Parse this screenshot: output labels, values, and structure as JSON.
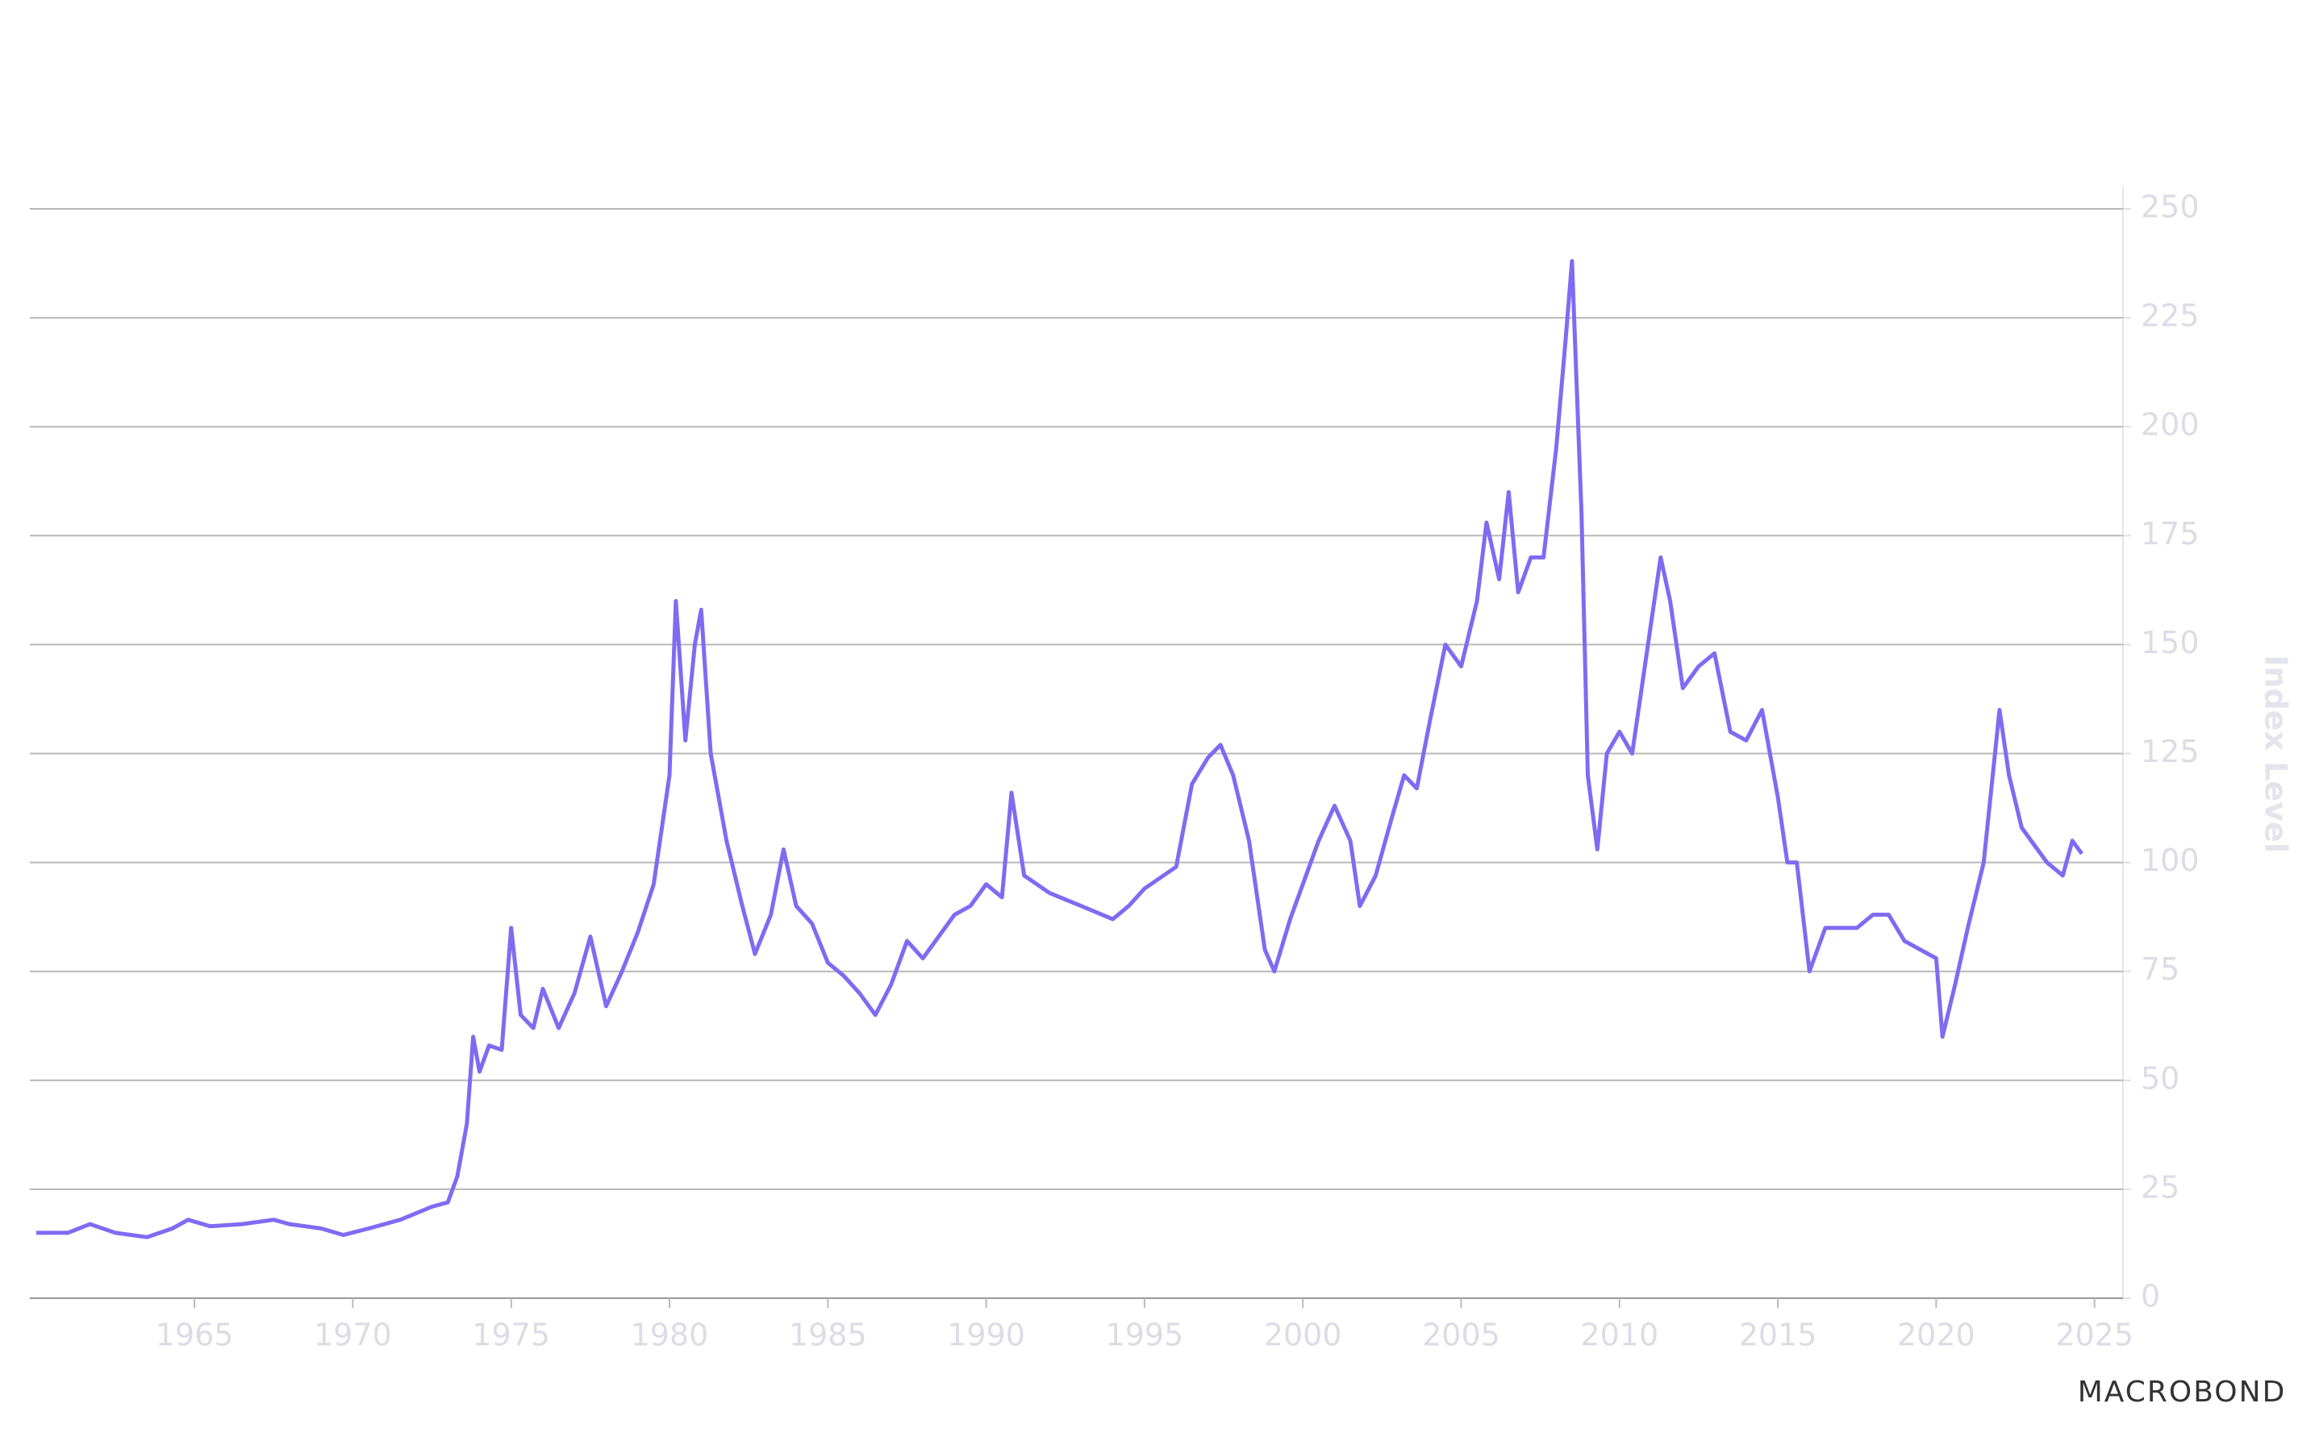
{
  "chart_data": {
    "type": "line",
    "y_axis_label": "Index Level",
    "brand": "MACROBOND",
    "color": "#7f6bf2",
    "grid": true,
    "y_axis_side": "right",
    "x": [
      1960.0,
      1961,
      1961.7,
      1962.5,
      1963.5,
      1964.3,
      1964.8,
      1965.5,
      1966.5,
      1967.5,
      1968,
      1969,
      1969.7,
      1970.5,
      1971.5,
      1972,
      1972.5,
      1973,
      1973.3,
      1973.6,
      1973.8,
      1974,
      1974.3,
      1974.7,
      1975,
      1975.3,
      1975.7,
      1976,
      1976.5,
      1977,
      1977.5,
      1978,
      1978.5,
      1979,
      1979.5,
      1980,
      1980.2,
      1980.5,
      1980.8,
      1981,
      1981.3,
      1981.8,
      1982.3,
      1982.7,
      1983.2,
      1983.6,
      1984,
      1984.5,
      1985,
      1985.5,
      1986,
      1986.5,
      1987,
      1987.5,
      1988,
      1988.5,
      1989,
      1989.5,
      1990,
      1990.5,
      1990.8,
      1991.2,
      1992,
      1993,
      1994,
      1994.5,
      1995,
      1996,
      1996.5,
      1997,
      1997.4,
      1997.8,
      1998.3,
      1998.8,
      1999.1,
      1999.6,
      2000,
      2000.5,
      2001,
      2001.5,
      2001.8,
      2002.3,
      2002.8,
      2003.2,
      2003.6,
      2004,
      2004.5,
      2005,
      2005.5,
      2005.8,
      2006.2,
      2006.5,
      2006.8,
      2007.2,
      2007.6,
      2008,
      2008.3,
      2008.5,
      2008.8,
      2009,
      2009.3,
      2009.6,
      2010,
      2010.4,
      2010.8,
      2011,
      2011.3,
      2011.6,
      2012,
      2012.5,
      2013,
      2013.5,
      2014,
      2014.5,
      2015,
      2015.3,
      2015.6,
      2016,
      2016.5,
      2017,
      2017.5,
      2018,
      2018.5,
      2019,
      2019.5,
      2020,
      2020.2,
      2020.6,
      2021,
      2021.5,
      2022,
      2022.3,
      2022.7,
      2023,
      2023.5,
      2024,
      2024.3,
      2024.6
    ],
    "values": [
      15,
      15,
      17,
      15,
      14,
      16,
      18,
      16.5,
      17,
      18,
      17,
      16,
      14.5,
      16,
      18,
      19.5,
      21,
      22,
      28,
      40,
      60,
      52,
      58,
      57,
      85,
      65,
      62,
      71,
      62,
      70,
      83,
      67,
      75,
      84,
      95,
      120,
      160,
      128,
      150,
      158,
      125,
      105,
      90,
      79,
      88,
      103,
      90,
      86,
      77,
      74,
      70,
      65,
      72,
      82,
      78,
      83,
      88,
      90,
      95,
      92,
      116,
      97,
      93,
      90,
      87,
      90,
      94,
      99,
      118,
      124,
      127,
      120,
      105,
      80,
      75,
      87,
      95,
      105,
      113,
      105,
      90,
      97,
      110,
      120,
      117,
      132,
      150,
      145,
      160,
      178,
      165,
      185,
      162,
      170,
      170,
      195,
      220,
      238,
      180,
      120,
      103,
      125,
      130,
      125,
      145,
      155,
      170,
      160,
      140,
      145,
      148,
      130,
      128,
      135,
      115,
      100,
      100,
      75,
      85,
      85,
      85,
      88,
      88,
      82,
      80,
      78,
      60,
      72,
      85,
      100,
      135,
      120,
      108,
      105,
      100,
      97,
      105,
      102
    ],
    "xlim": [
      1959.8,
      2025.9
    ],
    "xticks": [
      1965,
      1970,
      1975,
      1980,
      1985,
      1990,
      1995,
      2000,
      2005,
      2010,
      2015,
      2020,
      2025
    ],
    "ylim": [
      0,
      250
    ],
    "yticks": [
      0,
      25,
      50,
      75,
      100,
      125,
      150,
      175,
      200,
      225,
      250
    ]
  }
}
